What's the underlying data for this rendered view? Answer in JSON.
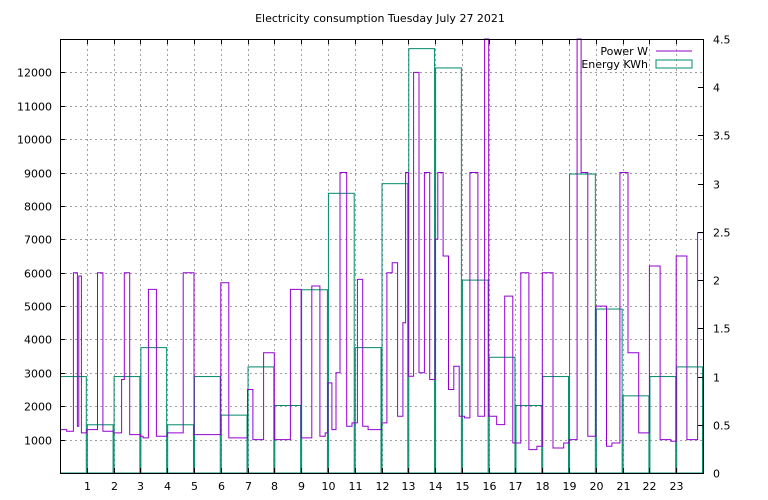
{
  "chart_data": {
    "type": "bar",
    "title": "Electricity consumption Tuesday July 27 2021",
    "xlabel": "",
    "ylabel": "",
    "y2label": "",
    "grid": true,
    "legend_position": "top-right",
    "x_ticks": [
      "1",
      "2",
      "3",
      "4",
      "5",
      "6",
      "7",
      "8",
      "9",
      "10",
      "11",
      "12",
      "13",
      "14",
      "15",
      "16",
      "17",
      "18",
      "19",
      "20",
      "21",
      "22",
      "23"
    ],
    "y_ticks": [
      "1000",
      "2000",
      "3000",
      "4000",
      "5000",
      "6000",
      "7000",
      "8000",
      "9000",
      "10000",
      "11000",
      "12000"
    ],
    "y2_ticks": [
      "0",
      "0.5",
      "1",
      "1.5",
      "2",
      "2.5",
      "3",
      "3.5",
      "4",
      "4.5"
    ],
    "xlim": [
      0,
      24
    ],
    "ylim": [
      0,
      13000
    ],
    "y2lim": [
      0,
      4.5
    ],
    "series": [
      {
        "name": "Energy KWh",
        "style": "boxes",
        "color": "#008b6b",
        "axis": "y2",
        "x": [
          0,
          1,
          2,
          3,
          4,
          5,
          6,
          7,
          8,
          9,
          10,
          11,
          12,
          13,
          14,
          15,
          16,
          17,
          18,
          19,
          20,
          21,
          22,
          23
        ],
        "values": [
          1.0,
          0.5,
          1.0,
          1.3,
          0.5,
          1.0,
          0.6,
          1.1,
          0.7,
          1.9,
          2.9,
          1.3,
          3.0,
          4.4,
          4.2,
          2.0,
          1.2,
          0.7,
          1.0,
          3.1,
          1.7,
          0.8,
          1.0,
          1.1
        ]
      },
      {
        "name": "Power W",
        "style": "steps",
        "color": "#9400d3",
        "axis": "y",
        "x": [
          0.0,
          0.25,
          0.5,
          0.65,
          0.7,
          0.8,
          1.0,
          1.4,
          1.6,
          2.0,
          2.3,
          2.4,
          2.6,
          3.0,
          3.1,
          3.3,
          3.6,
          3.9,
          4.0,
          4.6,
          5.0,
          5.6,
          6.0,
          6.3,
          6.6,
          7.0,
          7.2,
          7.6,
          8.0,
          8.6,
          9.0,
          9.4,
          9.7,
          9.9,
          10.0,
          10.15,
          10.3,
          10.45,
          10.7,
          10.9,
          11.1,
          11.3,
          11.5,
          11.7,
          12.0,
          12.2,
          12.4,
          12.6,
          12.8,
          12.9,
          13.0,
          13.2,
          13.4,
          13.6,
          13.8,
          14.0,
          14.1,
          14.3,
          14.5,
          14.7,
          14.9,
          15.1,
          15.3,
          15.6,
          15.85,
          16.0,
          16.3,
          16.6,
          16.9,
          17.2,
          17.5,
          17.8,
          18.0,
          18.4,
          18.8,
          19.0,
          19.3,
          19.45,
          19.7,
          20.0,
          20.4,
          20.6,
          20.9,
          21.2,
          21.6,
          22.0,
          22.4,
          22.8,
          23.0,
          23.4,
          23.8
        ],
        "values": [
          1300,
          1250,
          6000,
          1400,
          5900,
          1200,
          1300,
          6000,
          1250,
          1200,
          2800,
          6000,
          1150,
          1100,
          1050,
          5500,
          1100,
          1100,
          1200,
          6000,
          1150,
          1150,
          5700,
          1050,
          1050,
          2500,
          1000,
          3600,
          1000,
          5500,
          1050,
          5600,
          1100,
          1200,
          2700,
          1300,
          3000,
          9000,
          1400,
          1500,
          5800,
          1400,
          1300,
          1300,
          1500,
          6000,
          6300,
          1700,
          4500,
          9000,
          2900,
          12000,
          3000,
          9000,
          2800,
          7000,
          9000,
          6500,
          2500,
          3200,
          1700,
          1650,
          9000,
          1700,
          13000,
          1700,
          1450,
          5300,
          900,
          6000,
          700,
          800,
          6000,
          750,
          900,
          1000,
          13000,
          9000,
          1100,
          5000,
          800,
          900,
          9000,
          3600,
          1200,
          6200,
          1000,
          950,
          6500,
          1000,
          7200
        ]
      }
    ]
  }
}
